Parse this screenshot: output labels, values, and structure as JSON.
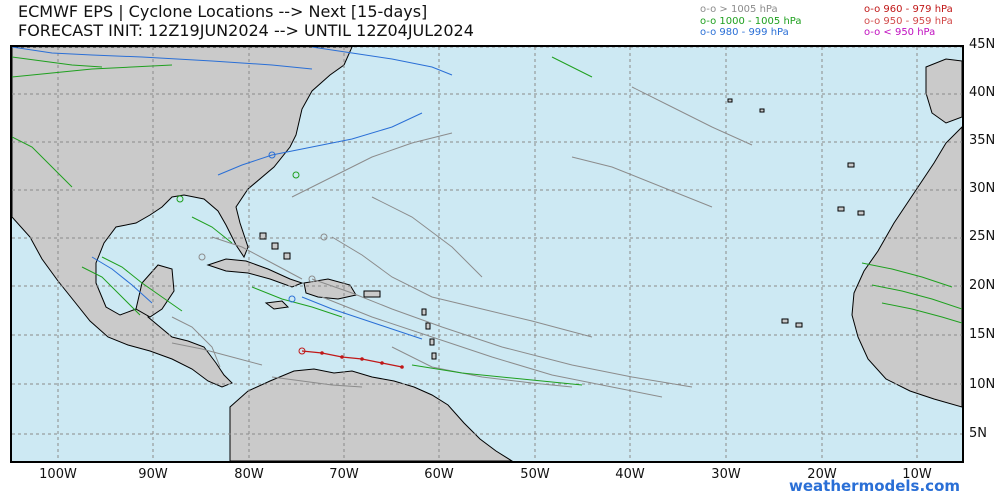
{
  "header": {
    "title_line1": "ECMWF EPS | Cyclone Locations --> Next [15-days]",
    "title_line2": "FORECAST INIT: 12Z19JUN2024 --> UNTIL 12Z04JUL2024"
  },
  "legend": {
    "left": [
      {
        "label": "o-o > 1005 hPa",
        "color": "#8c8c8c"
      },
      {
        "label": "o-o 1000 - 1005 hPa",
        "color": "#1fa01f"
      },
      {
        "label": "o-o 980 - 999 hPa",
        "color": "#2a6fd6"
      }
    ],
    "right": [
      {
        "label": "o-o 960 - 979 hPa",
        "color": "#c01818"
      },
      {
        "label": "o-o 950 - 959 hPa",
        "color": "#d24a4a"
      },
      {
        "label": "o-o < 950 hPa",
        "color": "#c010c0"
      }
    ]
  },
  "map": {
    "ocean_color": "#cde9f3",
    "land_color": "#cacaca",
    "grid_color": "#8a8a8a"
  },
  "lat_labels": [
    "45N",
    "40N",
    "35N",
    "30N",
    "25N",
    "20N",
    "15N",
    "10N",
    "5N"
  ],
  "lon_labels": [
    "100W",
    "90W",
    "80W",
    "70W",
    "60W",
    "50W",
    "40W",
    "30W",
    "20W",
    "10W"
  ],
  "credit": "weathermodels.com"
}
